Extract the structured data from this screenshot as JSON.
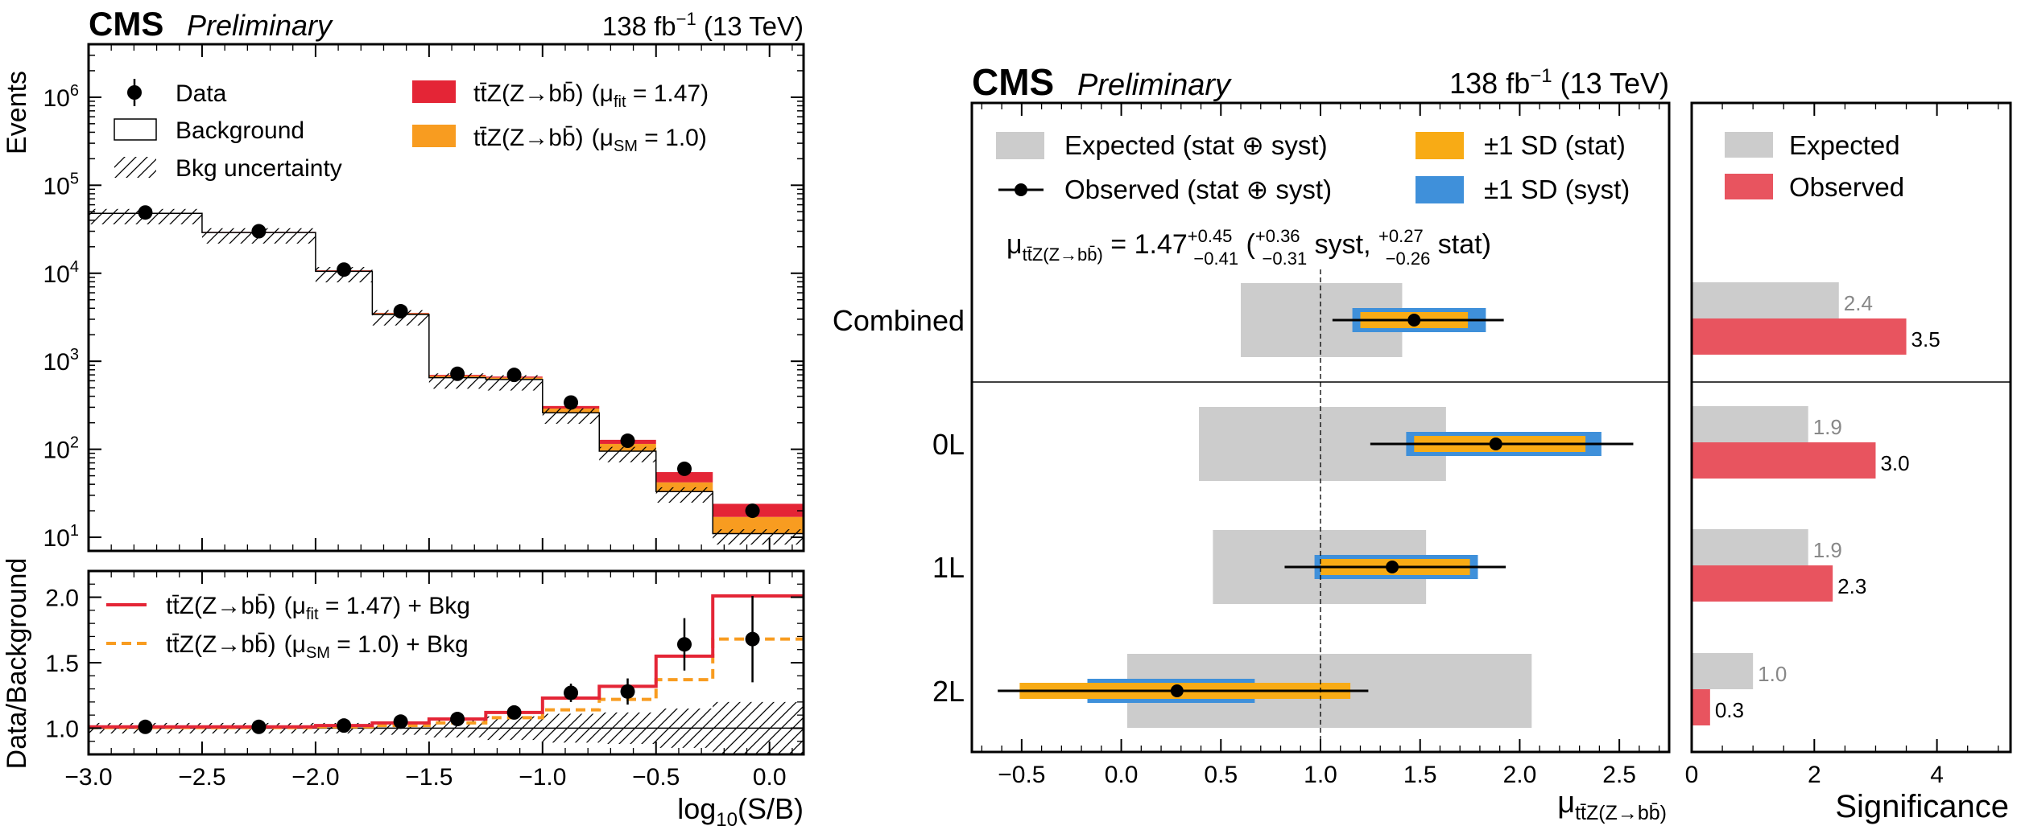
{
  "chart_data": [
    {
      "type": "step-histogram",
      "panel": "left-top",
      "header": {
        "cms": "CMS",
        "preliminary": "Preliminary",
        "lumi": "138 fb",
        "lumi_exp": "−1",
        "energy": " (13 TeV)"
      },
      "ylabel": "Events",
      "yscale": "log",
      "ylim": [
        7,
        4000000
      ],
      "xlim": [
        -3.0,
        0.15
      ],
      "y_ticks": [
        {
          "base": "10",
          "exp": "1",
          "value": 10
        },
        {
          "base": "10",
          "exp": "2",
          "value": 100
        },
        {
          "base": "10",
          "exp": "3",
          "value": 1000
        },
        {
          "base": "10",
          "exp": "4",
          "value": 10000
        },
        {
          "base": "10",
          "exp": "5",
          "value": 100000
        },
        {
          "base": "10",
          "exp": "6",
          "value": 1000000
        }
      ],
      "bin_edges": [
        -3.0,
        -2.5,
        -2.0,
        -1.75,
        -1.5,
        -1.25,
        -1.0,
        -0.75,
        -0.5,
        -0.25,
        0.15
      ],
      "background": [
        48000,
        29000,
        10500,
        3400,
        650,
        620,
        260,
        95,
        33,
        11
      ],
      "ttz_sm_stack_top": [
        48500,
        29300,
        10700,
        3500,
        680,
        650,
        290,
        115,
        42,
        17
      ],
      "ttz_fit_stack_top": [
        48700,
        29500,
        10800,
        3550,
        700,
        670,
        310,
        128,
        55,
        24
      ],
      "data_x": [
        -2.75,
        -2.25,
        -1.875,
        -1.625,
        -1.375,
        -1.125,
        -0.875,
        -0.625,
        -0.375,
        -0.075
      ],
      "data_y": [
        49000,
        30000,
        11000,
        3700,
        720,
        700,
        340,
        125,
        60,
        20
      ],
      "colors": {
        "fit": "#e42536",
        "sm": "#f89c20",
        "data": "#000000"
      },
      "legend": [
        {
          "key": "data",
          "label": "Data"
        },
        {
          "key": "background",
          "label": "Background"
        },
        {
          "key": "bkg_unc",
          "label": "Bkg uncertainty"
        },
        {
          "key": "fit",
          "label_main": "tt̄Z(Z→bb̄)",
          "label_mu": "(μ",
          "label_sub": "fit",
          "label_val": " = 1.47)"
        },
        {
          "key": "sm",
          "label_main": "tt̄Z(Z→bb̄)",
          "label_mu": "(μ",
          "label_sub": "SM",
          "label_val": " = 1.0)"
        }
      ]
    },
    {
      "type": "ratio",
      "panel": "left-bottom",
      "ylabel": "Data/Background",
      "xlabel": "log",
      "xlabel_sub": "10",
      "xlabel_rest": "(S/B)",
      "ylim": [
        0.8,
        2.2
      ],
      "xlim": [
        -3.0,
        0.15
      ],
      "y_ticks": [
        "1.0",
        "1.5",
        "2.0"
      ],
      "x_ticks": [
        "−3.0",
        "−2.5",
        "−2.0",
        "−1.5",
        "−1.0",
        "−0.5",
        "0.0"
      ],
      "bin_edges": [
        -3.0,
        -2.5,
        -2.0,
        -1.75,
        -1.5,
        -1.25,
        -1.0,
        -0.75,
        -0.5,
        -0.25,
        0.15
      ],
      "fit_ratio": [
        1.01,
        1.01,
        1.02,
        1.04,
        1.07,
        1.12,
        1.23,
        1.32,
        1.55,
        2.01
      ],
      "sm_ratio": [
        1.005,
        1.005,
        1.01,
        1.02,
        1.04,
        1.08,
        1.14,
        1.22,
        1.37,
        1.68
      ],
      "unc_band": [
        0.04,
        0.04,
        0.04,
        0.05,
        0.07,
        0.09,
        0.11,
        0.12,
        0.15,
        0.2
      ],
      "data_x": [
        -2.75,
        -2.25,
        -1.875,
        -1.625,
        -1.375,
        -1.125,
        -0.875,
        -0.625,
        -0.375,
        -0.075
      ],
      "data_y": [
        1.01,
        1.01,
        1.02,
        1.05,
        1.07,
        1.12,
        1.27,
        1.28,
        1.64,
        1.68
      ],
      "data_err": [
        0.005,
        0.006,
        0.01,
        0.02,
        0.04,
        0.05,
        0.07,
        0.1,
        0.2,
        0.33
      ],
      "legend": [
        {
          "key": "fit",
          "label_main": "tt̄Z(Z→bb̄)",
          "label_mu": "(μ",
          "label_sub": "fit",
          "label_val": " = 1.47) + Bkg"
        },
        {
          "key": "sm",
          "label_main": "tt̄Z(Z→bb̄)",
          "label_mu": "(μ",
          "label_sub": "SM",
          "label_val": " = 1.0) + Bkg"
        }
      ]
    },
    {
      "type": "summary-intervals",
      "panel": "right-mu",
      "header": {
        "cms": "CMS",
        "preliminary": "Preliminary",
        "lumi": "138 fb",
        "lumi_exp": "−1",
        "energy": " (13 TeV)"
      },
      "xlabel": "μ",
      "xlabel_sub": "tt̄Z(Z→bb̄)",
      "xlim": [
        -0.75,
        2.75
      ],
      "x_ticks": [
        "−0.5",
        "0.0",
        "0.5",
        "1.0",
        "1.5",
        "2.0",
        "2.5"
      ],
      "categories": [
        "Combined",
        "0L",
        "1L",
        "2L"
      ],
      "expected": [
        [
          0.6,
          1.41
        ],
        [
          0.39,
          1.63
        ],
        [
          0.46,
          1.53
        ],
        [
          0.03,
          2.06
        ]
      ],
      "observed": [
        1.47,
        1.88,
        1.36,
        0.28
      ],
      "obs_total": [
        [
          1.06,
          1.92
        ],
        [
          1.25,
          2.57
        ],
        [
          0.82,
          1.93
        ],
        [
          -0.62,
          1.24
        ]
      ],
      "syst_band": [
        [
          1.16,
          1.83
        ],
        [
          1.43,
          2.41
        ],
        [
          0.97,
          1.79
        ],
        [
          -0.17,
          0.67
        ]
      ],
      "stat_band": [
        [
          1.2,
          1.74
        ],
        [
          1.47,
          2.33
        ],
        [
          1.0,
          1.75
        ],
        [
          -0.51,
          1.15
        ]
      ],
      "sm_reference": 1.0,
      "combined_result": {
        "mu": "μ",
        "mu_sub": "tt̄Z(Z→bb̄)",
        "eq": " = 1.47",
        "tot_up": "+0.45",
        "tot_dn": "−0.41",
        "syst_up": "+0.36",
        "syst_dn": "−0.31",
        "syst_word": " syst, ",
        "stat_up": "+0.27",
        "stat_dn": "−0.26",
        "stat_word": " stat)",
        "open": " ("
      },
      "colors": {
        "expected": "#cccccc",
        "stat": "#f8ab15",
        "syst": "#3f90da"
      },
      "legend": [
        {
          "key": "expected",
          "label": "Expected (stat ⊕ syst)"
        },
        {
          "key": "observed",
          "label": "Observed (stat ⊕ syst)"
        },
        {
          "key": "stat",
          "label": "±1 SD (stat)"
        },
        {
          "key": "syst",
          "label": "±1 SD (syst)"
        }
      ]
    },
    {
      "type": "bar",
      "orientation": "horizontal",
      "panel": "right-significance",
      "xlabel": "Significance",
      "xlim": [
        0,
        5.2
      ],
      "x_ticks": [
        "0",
        "2",
        "4"
      ],
      "categories": [
        "Combined",
        "0L",
        "1L",
        "2L"
      ],
      "series": [
        {
          "name": "Expected",
          "values": [
            2.4,
            1.9,
            1.9,
            1.0
          ],
          "labels": [
            "2.4",
            "1.9",
            "1.9",
            "1.0"
          ],
          "color": "#cccccc"
        },
        {
          "name": "Observed",
          "values": [
            3.5,
            3.0,
            2.3,
            0.3
          ],
          "labels": [
            "3.5",
            "3.0",
            "2.3",
            "0.3"
          ],
          "color": "#e8545f"
        }
      ]
    }
  ]
}
